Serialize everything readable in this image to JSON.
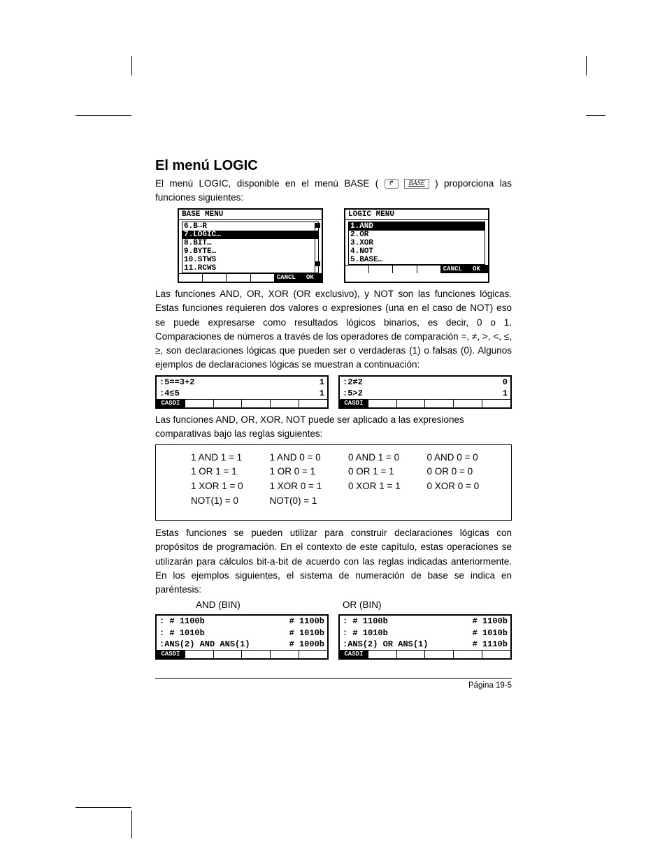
{
  "title": "El menú LOGIC",
  "p1a": "El menú LOGIC, disponible en el menú BASE (",
  "p1b": ") proporciona las funciones siguientes:",
  "key_shift": "↱",
  "key_base": "BASE",
  "base_menu": {
    "header": "BASE MENU",
    "items": [
      "6.B→R",
      "7.LOGIC…",
      "8.BIT…",
      "9.BYTE…",
      "10.STWS",
      "11.RCWS"
    ],
    "selected_index": 1,
    "foot": [
      "",
      "",
      "",
      "",
      "CANCL",
      "OK"
    ]
  },
  "logic_menu": {
    "header": "LOGIC MENU",
    "items": [
      "1.AND",
      "2.OR",
      "3.XOR",
      "4.NOT",
      "5.BASE…"
    ],
    "selected_index": 0,
    "foot": [
      "",
      "",
      "",
      "",
      "CANCL",
      "OK"
    ]
  },
  "p2": "Las funciones AND, OR, XOR (OR exclusivo), y NOT son las funciones lógicas.  Estas funciones requieren dos valores o expresiones (una en el caso de NOT) eso se puede expresarse como resultados lógicos binarios, es decir, 0 o 1. Comparaciones de números a través de los operadores de comparación =, ≠, >, <, ≤, ≥, son declaraciones lógicas que pueden ser o verdaderas (1) o falsas (0).  Algunos ejemplos de declaraciones lógicas se muestran a continuación:",
  "cmp_left": {
    "rows": [
      {
        "l": ":5==3+2",
        "r": ""
      },
      {
        "l": "",
        "r": "1"
      },
      {
        "l": ":4≤5",
        "r": ""
      },
      {
        "l": "",
        "r": "1"
      }
    ],
    "foot": [
      "CASDI",
      "",
      "",
      "",
      "",
      ""
    ]
  },
  "cmp_right": {
    "rows": [
      {
        "l": ":2≠2",
        "r": ""
      },
      {
        "l": "",
        "r": "0"
      },
      {
        "l": ":5>2",
        "r": ""
      },
      {
        "l": "",
        "r": "1"
      }
    ],
    "foot": [
      "CASDI",
      "",
      "",
      "",
      "",
      ""
    ]
  },
  "p3": "Las funciones AND, OR, XOR, NOT puede ser aplicado a las expresiones comparativas bajo las reglas siguientes:",
  "truth": [
    [
      "1 AND 1 = 1",
      "1 AND 0 = 0",
      "0 AND 1 = 0",
      "0 AND 0 = 0"
    ],
    [
      "1 OR 1 = 1",
      "1 OR  0 = 1",
      "0 OR 1 = 1",
      "0 OR 0 = 0"
    ],
    [
      "1 XOR 1 = 0",
      "1 XOR 0 = 1",
      "0 XOR 1 = 1",
      "0 XOR 0 = 0"
    ],
    [
      "NOT(1) = 0",
      "NOT(0) = 1",
      "",
      ""
    ]
  ],
  "p4": "Estas funciones se pueden utilizar para construir declaraciones lógicas con propósitos de programación. En el contexto de este capítulo, estas operaciones se utilizarán para cálculos bit-a-bit de acuerdo con las reglas indicadas anteriormente. En los ejemplos siguientes, el sistema de numeración de base se indica en paréntesis:",
  "ex_and_label": "AND (BIN)",
  "ex_or_label": "OR (BIN)",
  "ex_and": {
    "rows": [
      {
        "l": ": # 1100b",
        "r": ""
      },
      {
        "l": "",
        "r": "# 1100b"
      },
      {
        "l": ": # 1010b",
        "r": ""
      },
      {
        "l": "",
        "r": "# 1010b"
      },
      {
        "l": ":ANS(2) AND ANS(1)",
        "r": ""
      },
      {
        "l": "",
        "r": "# 1000b"
      }
    ],
    "foot": [
      "CASDI",
      "",
      "",
      "",
      "",
      ""
    ]
  },
  "ex_or": {
    "rows": [
      {
        "l": ": # 1100b",
        "r": ""
      },
      {
        "l": "",
        "r": "# 1100b"
      },
      {
        "l": ": # 1010b",
        "r": ""
      },
      {
        "l": "",
        "r": "# 1010b"
      },
      {
        "l": ":ANS(2) OR ANS(1)",
        "r": ""
      },
      {
        "l": "",
        "r": "# 1110b"
      }
    ],
    "foot": [
      "CASDI",
      "",
      "",
      "",
      "",
      ""
    ]
  },
  "page_number": "Página 19-5"
}
